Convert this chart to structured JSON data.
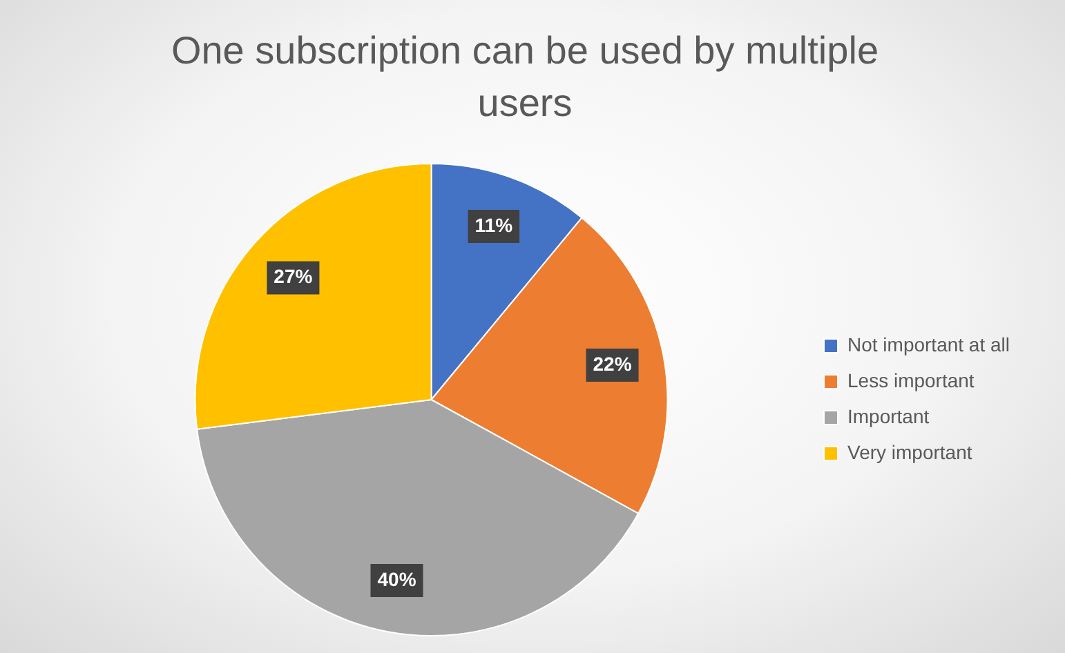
{
  "chart_data": {
    "type": "pie",
    "title": "One subscription can be used by multiple users",
    "categories": [
      "Not important at all",
      "Less important",
      "Important",
      "Very important"
    ],
    "values": [
      11,
      22,
      40,
      27
    ],
    "colors": [
      "#4472c4",
      "#ed7d31",
      "#a5a5a5",
      "#ffc000"
    ],
    "value_labels": [
      "11%",
      "22%",
      "40%",
      "27%"
    ],
    "legend": "right"
  }
}
